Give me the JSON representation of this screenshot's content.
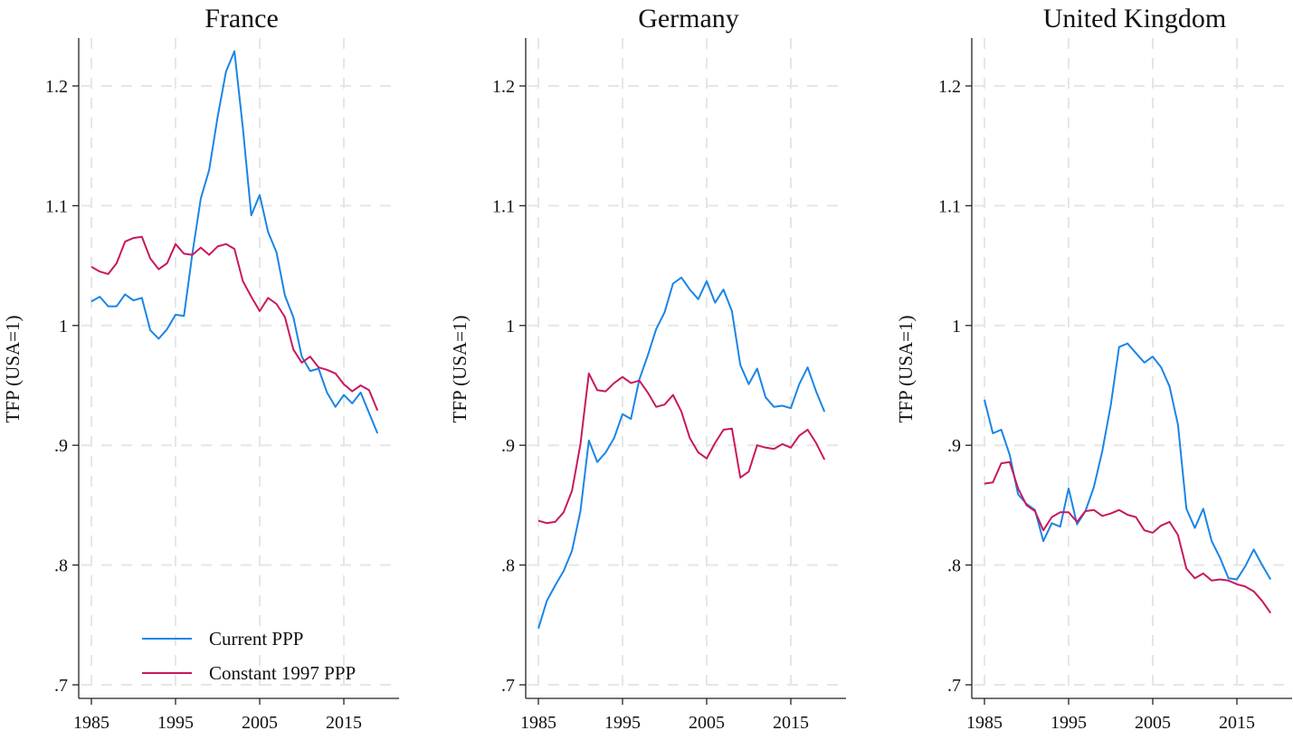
{
  "chart_data": [
    {
      "type": "line",
      "title": "France",
      "xlabel": "",
      "ylabel": "TFP (USA=1)",
      "xlim": [
        1984,
        2021
      ],
      "ylim": [
        0.7,
        1.24
      ],
      "xticks": [
        1985,
        1995,
        2005,
        2015
      ],
      "yticks": [
        0.7,
        0.8,
        0.9,
        1.0,
        1.1,
        1.2
      ],
      "ytick_labels": [
        ".7",
        ".8",
        ".9",
        "1",
        "1.1",
        "1.2"
      ],
      "grid": true,
      "legend_position": "bottom-left",
      "x": [
        1985,
        1986,
        1987,
        1988,
        1989,
        1990,
        1991,
        1992,
        1993,
        1994,
        1995,
        1996,
        1997,
        1998,
        1999,
        2000,
        2001,
        2002,
        2003,
        2004,
        2005,
        2006,
        2007,
        2008,
        2009,
        2010,
        2011,
        2012,
        2013,
        2014,
        2015,
        2016,
        2017,
        2018,
        2019
      ],
      "series": [
        {
          "name": "Current PPP",
          "color": "#1a85e6",
          "values": [
            1.02,
            1.024,
            1.016,
            1.016,
            1.026,
            1.021,
            1.023,
            0.996,
            0.989,
            0.997,
            1.009,
            1.008,
            1.06,
            1.106,
            1.13,
            1.174,
            1.212,
            1.229,
            1.165,
            1.092,
            1.109,
            1.078,
            1.061,
            1.025,
            1.007,
            0.974,
            0.962,
            0.964,
            0.944,
            0.932,
            0.942,
            0.935,
            0.944,
            0.927,
            0.91
          ]
        },
        {
          "name": "Constant 1997 PPP",
          "color": "#c8185f",
          "values": [
            1.049,
            1.045,
            1.043,
            1.052,
            1.07,
            1.073,
            1.074,
            1.056,
            1.047,
            1.052,
            1.068,
            1.06,
            1.059,
            1.065,
            1.059,
            1.066,
            1.068,
            1.064,
            1.037,
            1.024,
            1.012,
            1.023,
            1.018,
            1.007,
            0.98,
            0.969,
            0.974,
            0.965,
            0.963,
            0.96,
            0.951,
            0.945,
            0.95,
            0.946,
            0.929
          ]
        }
      ]
    },
    {
      "type": "line",
      "title": "Germany",
      "xlabel": "",
      "ylabel": "TFP (USA=1)",
      "xlim": [
        1984,
        2021
      ],
      "ylim": [
        0.7,
        1.24
      ],
      "xticks": [
        1985,
        1995,
        2005,
        2015
      ],
      "yticks": [
        0.7,
        0.8,
        0.9,
        1.0,
        1.1,
        1.2
      ],
      "ytick_labels": [
        ".7",
        ".8",
        ".9",
        "1",
        "1.1",
        "1.2"
      ],
      "grid": true,
      "x": [
        1985,
        1986,
        1987,
        1988,
        1989,
        1990,
        1991,
        1992,
        1993,
        1994,
        1995,
        1996,
        1997,
        1998,
        1999,
        2000,
        2001,
        2002,
        2003,
        2004,
        2005,
        2006,
        2007,
        2008,
        2009,
        2010,
        2011,
        2012,
        2013,
        2014,
        2015,
        2016,
        2017,
        2018,
        2019
      ],
      "series": [
        {
          "name": "Current PPP",
          "color": "#1a85e6",
          "values": [
            0.747,
            0.77,
            0.783,
            0.795,
            0.812,
            0.845,
            0.904,
            0.886,
            0.894,
            0.906,
            0.926,
            0.922,
            0.955,
            0.975,
            0.997,
            1.011,
            1.035,
            1.04,
            1.03,
            1.022,
            1.037,
            1.019,
            1.03,
            1.012,
            0.967,
            0.951,
            0.964,
            0.94,
            0.932,
            0.933,
            0.931,
            0.951,
            0.965,
            0.945,
            0.928
          ]
        },
        {
          "name": "Constant 1997 PPP",
          "color": "#c8185f",
          "values": [
            0.837,
            0.835,
            0.836,
            0.844,
            0.862,
            0.901,
            0.96,
            0.946,
            0.945,
            0.952,
            0.957,
            0.952,
            0.954,
            0.944,
            0.932,
            0.934,
            0.942,
            0.928,
            0.906,
            0.894,
            0.889,
            0.902,
            0.913,
            0.914,
            0.873,
            0.878,
            0.9,
            0.898,
            0.897,
            0.901,
            0.898,
            0.908,
            0.913,
            0.902,
            0.888
          ]
        }
      ]
    },
    {
      "type": "line",
      "title": "United Kingdom",
      "xlabel": "",
      "ylabel": "TFP (USA=1)",
      "xlim": [
        1984,
        2021
      ],
      "ylim": [
        0.7,
        1.24
      ],
      "xticks": [
        1985,
        1995,
        2005,
        2015
      ],
      "yticks": [
        0.7,
        0.8,
        0.9,
        1.0,
        1.1,
        1.2
      ],
      "ytick_labels": [
        ".7",
        ".8",
        ".9",
        "1",
        "1.1",
        "1.2"
      ],
      "grid": true,
      "x": [
        1985,
        1986,
        1987,
        1988,
        1989,
        1990,
        1991,
        1992,
        1993,
        1994,
        1995,
        1996,
        1997,
        1998,
        1999,
        2000,
        2001,
        2002,
        2003,
        2004,
        2005,
        2006,
        2007,
        2008,
        2009,
        2010,
        2011,
        2012,
        2013,
        2014,
        2015,
        2016,
        2017,
        2018,
        2019
      ],
      "series": [
        {
          "name": "Current PPP",
          "color": "#1a85e6",
          "values": [
            0.938,
            0.91,
            0.913,
            0.892,
            0.859,
            0.851,
            0.846,
            0.82,
            0.835,
            0.832,
            0.864,
            0.834,
            0.845,
            0.865,
            0.895,
            0.933,
            0.982,
            0.985,
            0.977,
            0.969,
            0.974,
            0.965,
            0.949,
            0.917,
            0.847,
            0.831,
            0.847,
            0.82,
            0.806,
            0.789,
            0.788,
            0.799,
            0.813,
            0.8,
            0.788
          ]
        },
        {
          "name": "Constant 1997 PPP",
          "color": "#c8185f",
          "values": [
            0.868,
            0.869,
            0.885,
            0.886,
            0.864,
            0.85,
            0.845,
            0.829,
            0.84,
            0.844,
            0.844,
            0.836,
            0.845,
            0.846,
            0.841,
            0.843,
            0.846,
            0.842,
            0.84,
            0.829,
            0.827,
            0.833,
            0.836,
            0.825,
            0.797,
            0.789,
            0.793,
            0.787,
            0.788,
            0.787,
            0.784,
            0.782,
            0.778,
            0.77,
            0.76
          ]
        }
      ]
    }
  ],
  "legend": {
    "items": [
      {
        "label": "Current PPP",
        "color": "#1a85e6"
      },
      {
        "label": "Constant 1997 PPP",
        "color": "#c8185f"
      }
    ]
  }
}
